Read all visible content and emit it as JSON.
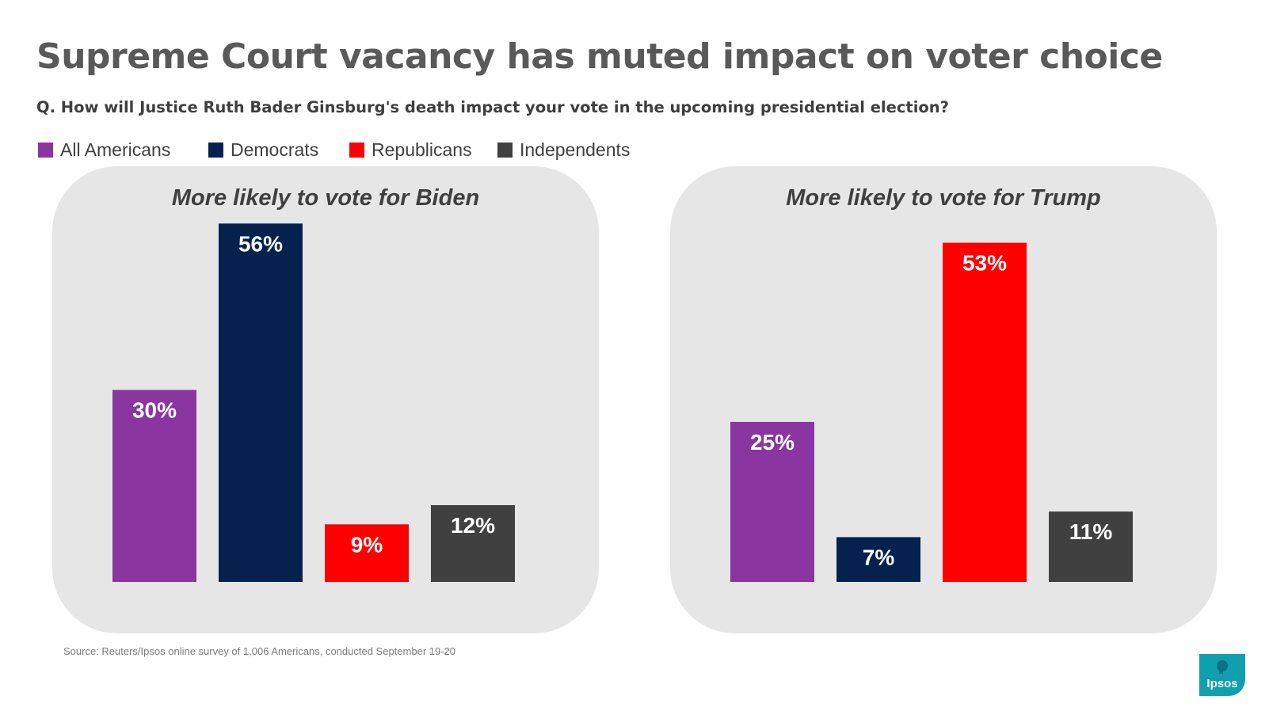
{
  "title": "Supreme Court vacancy has muted impact on voter choice",
  "question": "Q. How will Justice Ruth Bader Ginsburg's death impact your vote in the upcoming presidential election?",
  "legend": [
    {
      "label": "All Americans",
      "color": "#8a35a0"
    },
    {
      "label": "Democrats",
      "color": "#05224f"
    },
    {
      "label": "Republicans",
      "color": "#ff0000"
    },
    {
      "label": "Independents",
      "color": "#404040"
    }
  ],
  "chart_data": [
    {
      "type": "bar",
      "title": "More likely to vote for Biden",
      "categories": [
        "All Americans",
        "Democrats",
        "Republicans",
        "Independents"
      ],
      "values": [
        30,
        56,
        9,
        12
      ],
      "labels": [
        "30%",
        "56%",
        "9%",
        "12%"
      ],
      "colors": [
        "#8a35a0",
        "#05224f",
        "#ff0000",
        "#404040"
      ],
      "ylim": [
        0,
        60
      ],
      "xlabel": "",
      "ylabel": ""
    },
    {
      "type": "bar",
      "title": "More likely to vote for Trump",
      "categories": [
        "All Americans",
        "Democrats",
        "Republicans",
        "Independents"
      ],
      "values": [
        25,
        7,
        53,
        11
      ],
      "labels": [
        "25%",
        "7%",
        "53%",
        "11%"
      ],
      "colors": [
        "#8a35a0",
        "#05224f",
        "#ff0000",
        "#404040"
      ],
      "ylim": [
        0,
        60
      ],
      "xlabel": "",
      "ylabel": ""
    }
  ],
  "source": "Source: Reuters/Ipsos online survey of 1,006 Americans, conducted September 19-20",
  "logo": {
    "text": "Ipsos",
    "icon": "ipsos-logo-icon",
    "color": "#0f9fae"
  }
}
